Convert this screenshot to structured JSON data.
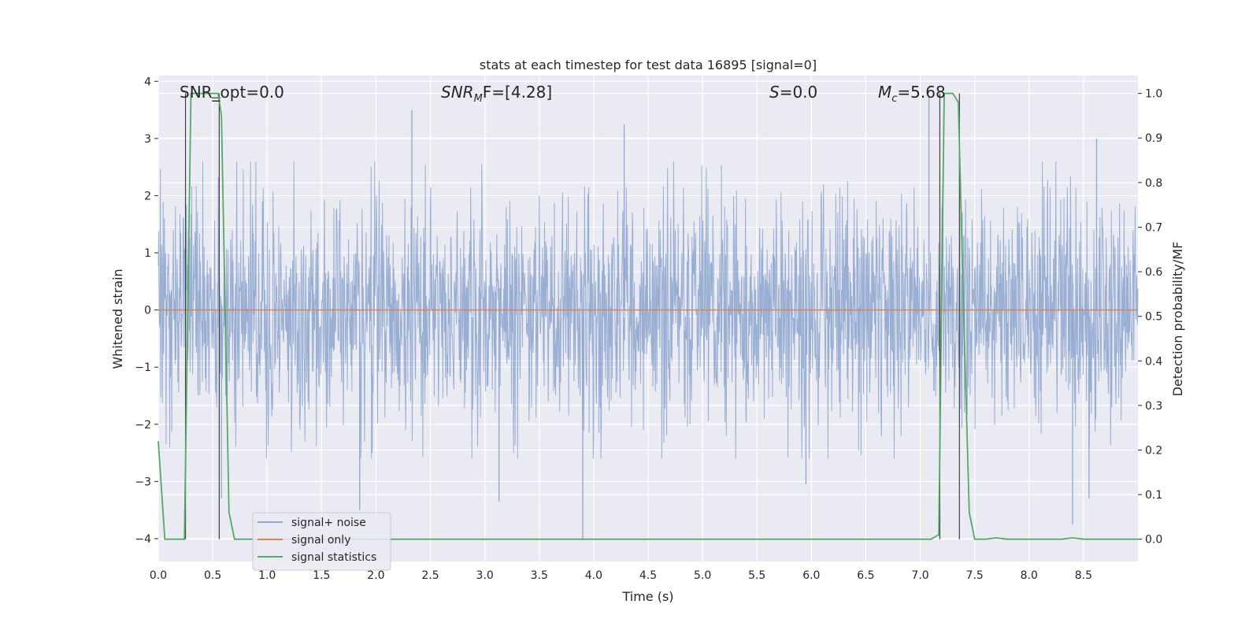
{
  "chart_data": {
    "type": "line",
    "title": "stats at each timestep for test data 16895 [signal=0]",
    "xlabel": "Time (s)",
    "ylabel_left": "Whitened strain",
    "ylabel_right": "Detection probability/MF",
    "xlim": [
      0.0,
      9.0
    ],
    "ylim_left": [
      -4.4,
      4.1
    ],
    "ylim_right": [
      -0.05,
      1.04
    ],
    "x_ticks": [
      "0.0",
      "0.5",
      "1.0",
      "1.5",
      "2.0",
      "2.5",
      "3.0",
      "3.5",
      "4.0",
      "4.5",
      "5.0",
      "5.5",
      "6.0",
      "6.5",
      "7.0",
      "7.5",
      "8.0",
      "8.5"
    ],
    "y_ticks_left": [
      "4",
      "3",
      "2",
      "1",
      "0",
      "−1",
      "−2",
      "−3",
      "−4"
    ],
    "y_ticks_right": [
      "1.0",
      "0.9",
      "0.8",
      "0.7",
      "0.6",
      "0.5",
      "0.4",
      "0.3",
      "0.2",
      "0.1",
      "0.0"
    ],
    "annotations": {
      "snr_opt": "SNR_opt=0.0",
      "snr_mf_label": "SNR",
      "snr_mf_sub": "M",
      "snr_mf_rest": "F=[4.28]",
      "s_label": "S",
      "s_rest": "=0.0",
      "mc_label": "M",
      "mc_sub": "c",
      "mc_rest": "=5.68"
    },
    "legend": [
      "signal+ noise",
      "signal only",
      "signal statistics"
    ],
    "legend_location": "lower-left",
    "series": [
      {
        "name": "signal+ noise",
        "description_values": "noise trace, roughly within [-2.5, 2.5] with spikes",
        "typical_amplitude": 1.4,
        "extremes": [
          [
            0.58,
            -3.3
          ],
          [
            1.85,
            -3.5
          ],
          [
            2.33,
            3.5
          ],
          [
            3.13,
            -3.35
          ],
          [
            3.9,
            -4.0
          ],
          [
            4.28,
            3.25
          ],
          [
            5.95,
            -3.05
          ],
          [
            7.08,
            3.75
          ],
          [
            8.4,
            -3.75
          ],
          [
            8.55,
            -3.3
          ],
          [
            8.62,
            3.0
          ]
        ]
      },
      {
        "name": "signal only",
        "values": "zero",
        "y": 0.0
      },
      {
        "name": "signal statistics",
        "x": [
          0.0,
          0.06,
          0.2,
          0.24,
          0.27,
          0.3,
          0.55,
          0.58,
          0.65,
          0.7,
          1.0,
          7.1,
          7.17,
          7.22,
          7.3,
          7.35,
          7.4,
          7.45,
          7.5,
          7.6,
          7.7,
          7.8,
          8.0,
          8.3,
          8.4,
          8.5,
          8.8,
          9.0
        ],
        "y": [
          0.22,
          0.0,
          0.0,
          0.0,
          0.5,
          1.0,
          1.0,
          0.95,
          0.06,
          0.0,
          0.0,
          0.0,
          0.01,
          1.0,
          1.0,
          0.98,
          0.5,
          0.06,
          0.0,
          0.0,
          0.003,
          0.0,
          0.0,
          0.0,
          0.003,
          0.0,
          0.0,
          0.0
        ]
      }
    ],
    "vertical_markers_x": [
      0.25,
      0.56,
      7.18,
      7.36
    ],
    "colors": {
      "noise": "#8fa7cf",
      "signal": "#dd8452",
      "stats": "#55a868",
      "background": "#eaeaf2",
      "grid": "#ffffff",
      "marker": "#404040"
    }
  }
}
